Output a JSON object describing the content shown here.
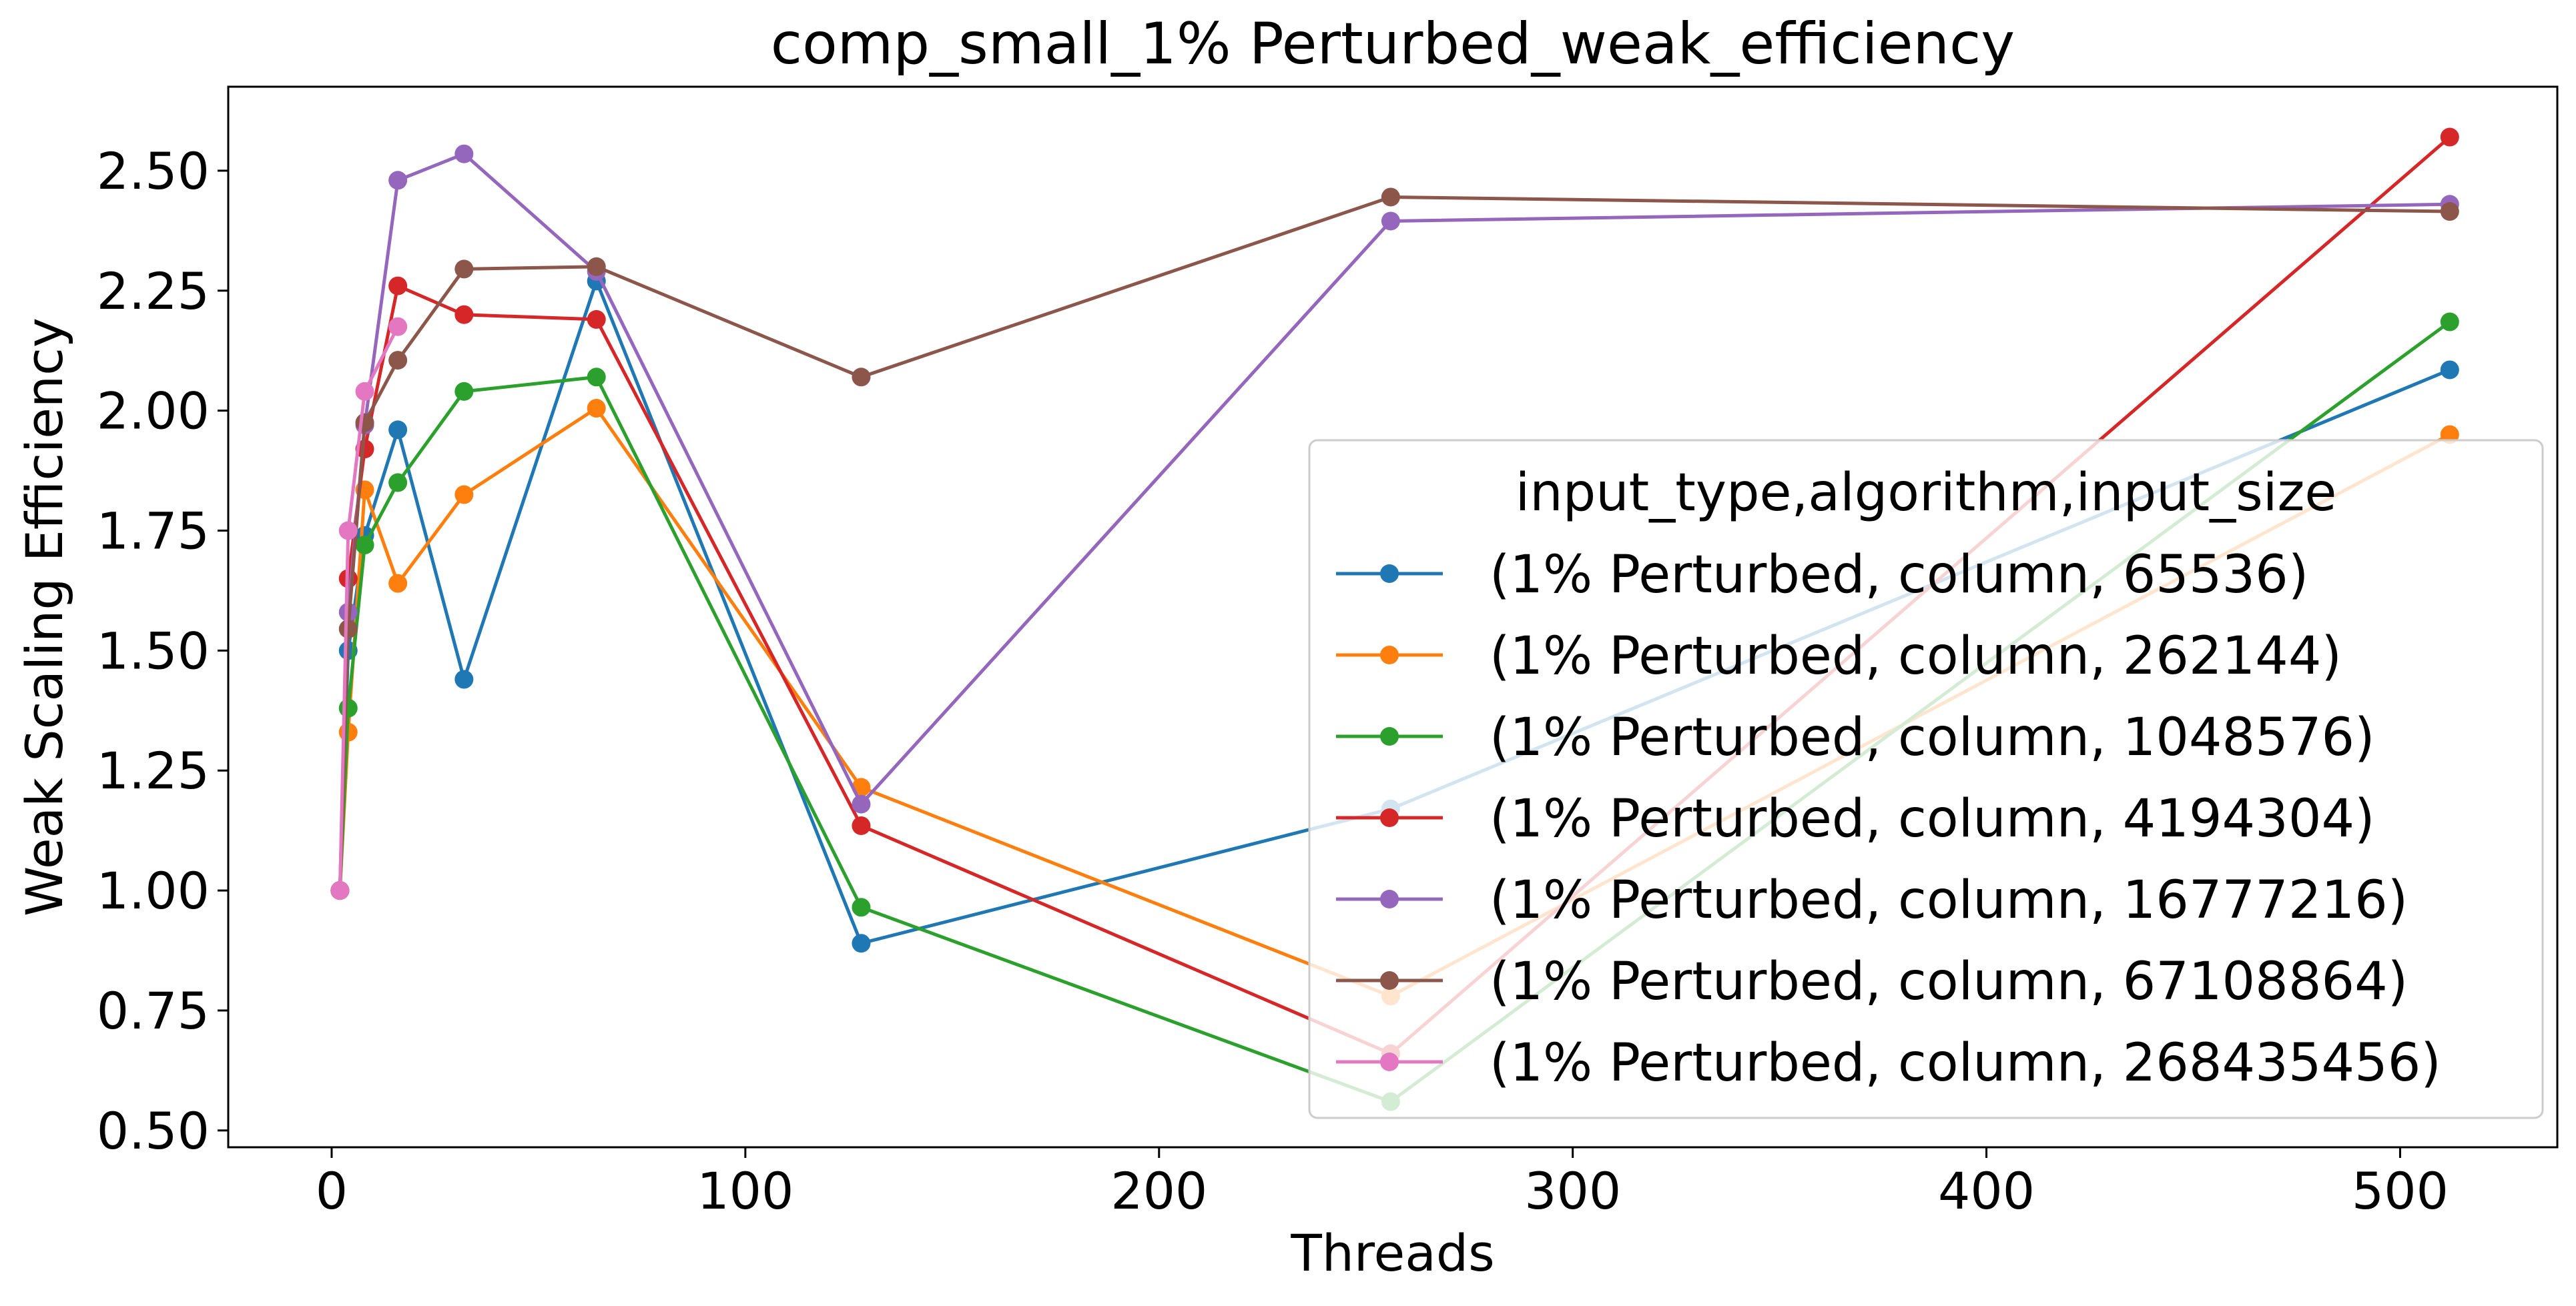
{
  "chart_data": {
    "type": "line",
    "title": "comp_small_1% Perturbed_weak_efficiency",
    "xlabel": "Threads",
    "ylabel": "Weak Scaling Efficiency",
    "xlim": [
      -25,
      538
    ],
    "ylim": [
      0.465,
      2.675
    ],
    "xticks": [
      0,
      100,
      200,
      300,
      400,
      500
    ],
    "yticks": [
      0.5,
      0.75,
      1.0,
      1.25,
      1.5,
      1.75,
      2.0,
      2.25,
      2.5
    ],
    "xtick_labels": [
      "0",
      "100",
      "200",
      "300",
      "400",
      "500"
    ],
    "ytick_labels": [
      "0.50",
      "0.75",
      "1.00",
      "1.25",
      "1.50",
      "1.75",
      "2.00",
      "2.25",
      "2.50"
    ],
    "grid": false,
    "legend": {
      "title": "input_type,algorithm,input_size",
      "placement": "center-right"
    },
    "series": [
      {
        "name": "(1% Perturbed, column, 65536)",
        "color": "#1f77b4",
        "x": [
          2,
          4,
          8,
          16,
          32,
          64,
          128,
          256,
          512
        ],
        "y": [
          1.0,
          1.5,
          1.74,
          1.96,
          1.44,
          2.27,
          0.89,
          1.17,
          2.085
        ]
      },
      {
        "name": "(1% Perturbed, column, 262144)",
        "color": "#ff7f0e",
        "x": [
          2,
          4,
          8,
          16,
          32,
          64,
          128,
          256,
          512
        ],
        "y": [
          1.0,
          1.33,
          1.835,
          1.64,
          1.825,
          2.005,
          1.215,
          0.78,
          1.95
        ]
      },
      {
        "name": "(1% Perturbed, column, 1048576)",
        "color": "#2ca02c",
        "x": [
          2,
          4,
          8,
          16,
          32,
          64,
          128,
          256,
          512
        ],
        "y": [
          1.0,
          1.38,
          1.72,
          1.85,
          2.04,
          2.07,
          0.965,
          0.56,
          2.185
        ]
      },
      {
        "name": "(1% Perturbed, column, 4194304)",
        "color": "#d62728",
        "x": [
          2,
          4,
          8,
          16,
          32,
          64,
          128,
          256,
          512
        ],
        "y": [
          1.0,
          1.65,
          1.92,
          2.26,
          2.2,
          2.19,
          1.135,
          0.66,
          2.57
        ]
      },
      {
        "name": "(1% Perturbed, column, 16777216)",
        "color": "#9467bd",
        "x": [
          2,
          4,
          8,
          16,
          32,
          64,
          128,
          256,
          512
        ],
        "y": [
          1.0,
          1.58,
          1.97,
          2.48,
          2.535,
          2.29,
          1.18,
          2.395,
          2.43
        ]
      },
      {
        "name": "(1% Perturbed, column, 67108864)",
        "color": "#8c564b",
        "x": [
          2,
          4,
          8,
          16,
          32,
          64,
          128,
          256,
          512
        ],
        "y": [
          1.0,
          1.545,
          1.975,
          2.105,
          2.295,
          2.3,
          2.07,
          2.445,
          2.415
        ]
      },
      {
        "name": "(1% Perturbed, column, 268435456)",
        "color": "#e377c2",
        "x": [
          2,
          4,
          8,
          16
        ],
        "y": [
          1.0,
          1.75,
          2.04,
          2.175
        ]
      }
    ]
  }
}
